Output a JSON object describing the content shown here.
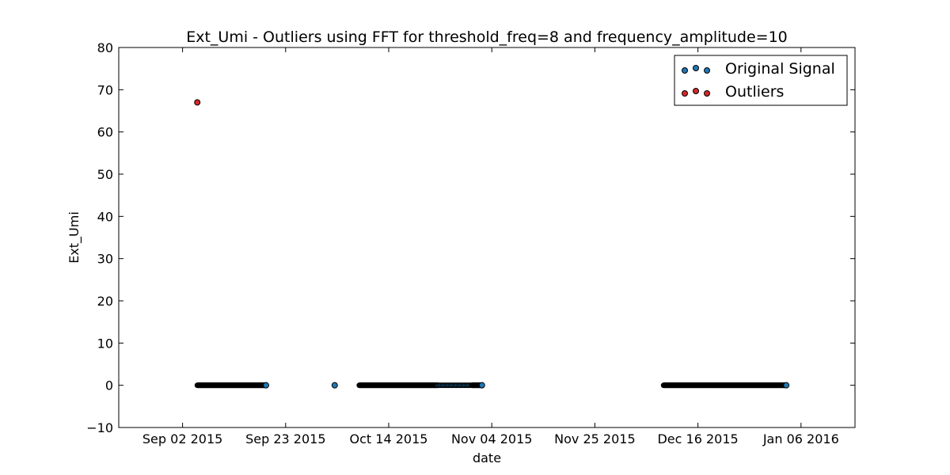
{
  "chart_data": {
    "type": "scatter",
    "title": "Ext_Umi - Outliers using FFT for threshold_freq=8 and frequency_amplitude=10",
    "xlabel": "date",
    "ylabel": "Ext_Umi",
    "xlim": [
      "2015-08-20",
      "2016-01-17"
    ],
    "ylim": [
      -10,
      80
    ],
    "x_ticks": [
      "2015-09-02",
      "2015-09-23",
      "2015-10-14",
      "2015-11-04",
      "2015-11-25",
      "2015-12-16",
      "2016-01-06"
    ],
    "x_tick_labels": [
      "Sep 02 2015",
      "Sep 23 2015",
      "Oct 14 2015",
      "Nov 04 2015",
      "Nov 25 2015",
      "Dec 16 2015",
      "Jan 06 2016"
    ],
    "y_ticks": [
      -10,
      0,
      10,
      20,
      30,
      40,
      50,
      60,
      70,
      80
    ],
    "y_tick_labels": [
      "−10",
      "0",
      "10",
      "20",
      "30",
      "40",
      "50",
      "60",
      "70",
      "80"
    ],
    "grid": false,
    "legend_position": "top-right",
    "series": [
      {
        "name": "Original Signal",
        "color": "#1f77b4",
        "edge_color": "#000000",
        "segments": [
          {
            "start": "2015-09-05",
            "end": "2015-09-19",
            "y": 0
          },
          {
            "start": "2015-10-08",
            "end": "2015-10-24",
            "y": 0
          },
          {
            "start": "2015-10-24",
            "end": "2015-10-31",
            "y": 0,
            "sparse": true
          },
          {
            "start": "2015-10-31",
            "end": "2015-11-02",
            "y": 0
          },
          {
            "start": "2015-12-09",
            "end": "2016-01-03",
            "y": 0
          }
        ],
        "points": [
          {
            "x": "2015-09-19",
            "y": 0
          },
          {
            "x": "2015-10-03",
            "y": 0
          },
          {
            "x": "2015-11-02",
            "y": 0
          },
          {
            "x": "2016-01-03",
            "y": 0
          }
        ]
      },
      {
        "name": "Outliers",
        "color": "#d62728",
        "edge_color": "#000000",
        "points": [
          {
            "x": "2015-09-05",
            "y": 67
          }
        ]
      }
    ]
  }
}
